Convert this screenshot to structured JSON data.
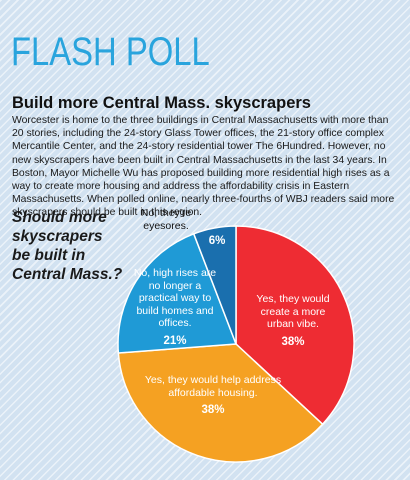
{
  "header": {
    "title": "FLASH POLL"
  },
  "article": {
    "headline": "Build more Central Mass. skyscrapers",
    "body": "Worcester is home to the three buildings in Central Massachusetts with more than 20 stories, including the 24-story Glass Tower offices, the 21-story office complex Mercantile Center, and the 24-story residential tower The 6Hundred. However, no new skyscrapers have been built in Central Massachusetts in the last 34 years. In Boston, Mayor Michelle Wu has proposed building more residential high rises as a way to create more housing and address the affordability crisis in Eastern Massachusetts. When polled online, nearly three-fourths of WBJ readers said more skyscrapers should be built in this region."
  },
  "question": "Should more skyscrapers be built in Central Mass.?",
  "colors": {
    "background": "#d2e2f1",
    "header": "#29a4dd",
    "red": "#ee2c33",
    "orange": "#f5a122",
    "light_blue": "#1f9ad6",
    "dark_blue": "#1a6fae"
  },
  "chart_data": {
    "type": "pie",
    "title": "",
    "slices": [
      {
        "label": "Yes, they would create a more urban vibe.",
        "pct_label": "38%",
        "value": 38,
        "color": "#ee2c33"
      },
      {
        "label": "Yes, they would help address affordable housing.",
        "pct_label": "38%",
        "value": 38,
        "color": "#f5a122"
      },
      {
        "label": "No, high rises are no longer a practical way to build homes and offices.",
        "pct_label": "21%",
        "value": 21,
        "color": "#1f9ad6"
      },
      {
        "label": "No, they're eyesores.",
        "pct_label": "6%",
        "value": 6,
        "color": "#1a6fae"
      }
    ]
  }
}
